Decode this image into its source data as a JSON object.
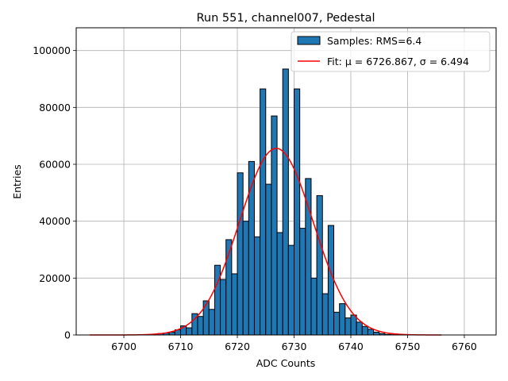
{
  "chart_data": {
    "type": "bar",
    "title": "Run 551, channel007, Pedestal",
    "xlabel": "ADC Counts",
    "ylabel": "Entries",
    "xlim": [
      6691.6,
      6765.6
    ],
    "ylim": [
      0,
      108000
    ],
    "xticks": [
      6700,
      6710,
      6720,
      6730,
      6740,
      6750,
      6760
    ],
    "yticks": [
      0,
      20000,
      40000,
      60000,
      80000,
      100000
    ],
    "grid": true,
    "legend_placement": "top-right",
    "bin_width": 1,
    "series": [
      {
        "name": "Samples: RMS=6.4",
        "kind": "histogram",
        "color": "#1f77b4",
        "edgecolor": "#000000",
        "bins": [
          6705,
          6706,
          6707,
          6708,
          6709,
          6710,
          6711,
          6712,
          6713,
          6714,
          6715,
          6716,
          6717,
          6718,
          6719,
          6720,
          6721,
          6722,
          6723,
          6724,
          6725,
          6726,
          6727,
          6728,
          6729,
          6730,
          6731,
          6732,
          6733,
          6734,
          6735,
          6736,
          6737,
          6738,
          6739,
          6740,
          6741,
          6742,
          6743,
          6744,
          6745,
          6746,
          6747
        ],
        "values": [
          300,
          500,
          700,
          1000,
          1800,
          3200,
          2500,
          7500,
          6500,
          12000,
          9000,
          24500,
          19500,
          33500,
          21500,
          57000,
          40000,
          61000,
          34500,
          86500,
          53000,
          77000,
          36000,
          93500,
          31500,
          86500,
          37500,
          55000,
          20000,
          49000,
          14500,
          38500,
          8000,
          11000,
          6000,
          7000,
          4500,
          3000,
          2000,
          1000,
          500,
          200,
          100
        ]
      },
      {
        "name": "Fit: μ = 6726.867, σ = 6.494",
        "kind": "gaussian-fit",
        "color": "#ff0000",
        "mu": 6726.867,
        "sigma": 6.494,
        "amplitude": 65600,
        "x_range": [
          6694,
          6756
        ]
      }
    ]
  }
}
